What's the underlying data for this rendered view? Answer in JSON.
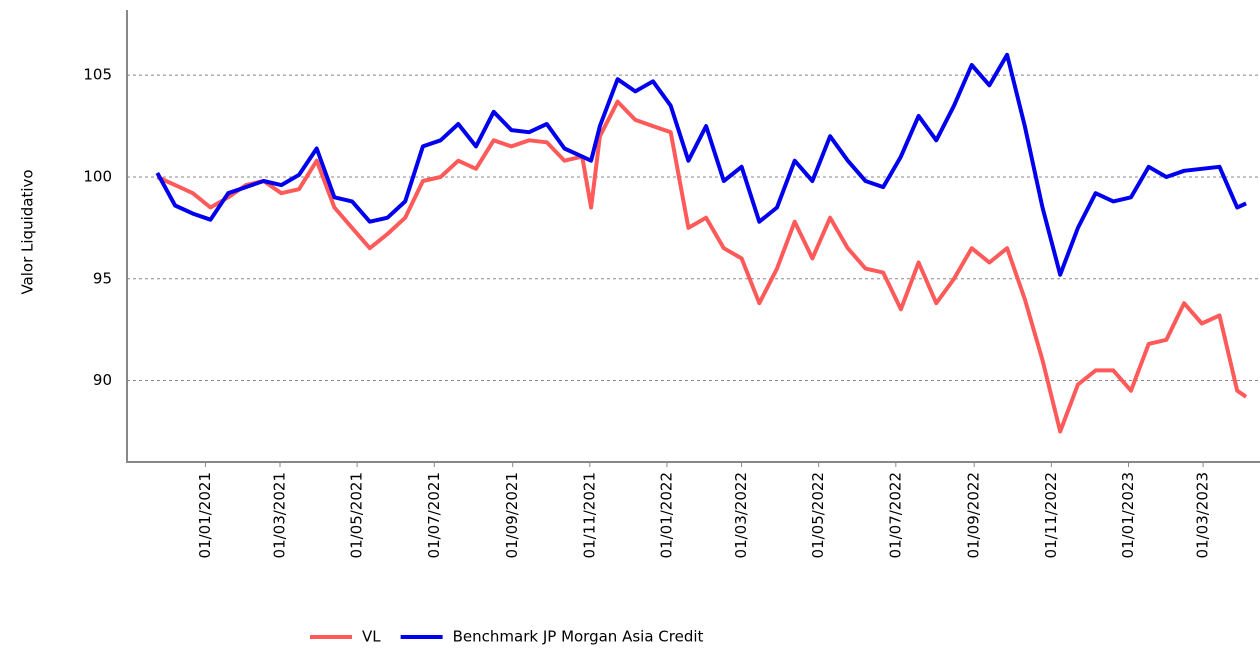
{
  "chart_data": {
    "type": "line",
    "y_label": "Valor Liquidativo",
    "x": [
      "2020-11-24",
      "2020-12-08",
      "2020-12-22",
      "2021-01-05",
      "2021-01-19",
      "2021-02-02",
      "2021-02-16",
      "2021-03-02",
      "2021-03-16",
      "2021-03-30",
      "2021-04-13",
      "2021-04-27",
      "2021-05-11",
      "2021-05-25",
      "2021-06-08",
      "2021-06-22",
      "2021-07-06",
      "2021-07-20",
      "2021-08-03",
      "2021-08-17",
      "2021-08-31",
      "2021-09-14",
      "2021-09-28",
      "2021-10-12",
      "2021-10-26",
      "2021-11-02",
      "2021-11-09",
      "2021-11-23",
      "2021-12-07",
      "2021-12-21",
      "2022-01-04",
      "2022-01-18",
      "2022-02-01",
      "2022-02-15",
      "2022-03-01",
      "2022-03-15",
      "2022-03-29",
      "2022-04-12",
      "2022-04-26",
      "2022-05-10",
      "2022-05-24",
      "2022-06-07",
      "2022-06-21",
      "2022-07-05",
      "2022-07-19",
      "2022-08-02",
      "2022-08-16",
      "2022-08-30",
      "2022-09-13",
      "2022-09-27",
      "2022-10-11",
      "2022-10-25",
      "2022-11-08",
      "2022-11-22",
      "2022-12-06",
      "2022-12-20",
      "2023-01-03",
      "2023-01-17",
      "2023-01-31",
      "2023-02-14",
      "2023-02-28",
      "2023-03-14",
      "2023-03-28",
      "2023-04-04"
    ],
    "series": [
      {
        "name": "VL",
        "color": "#ff5a5a",
        "values": [
          100.0,
          99.6,
          99.2,
          98.5,
          99.0,
          99.6,
          99.8,
          99.2,
          99.4,
          100.8,
          98.5,
          97.5,
          96.5,
          97.2,
          98.0,
          99.8,
          100.0,
          100.8,
          100.4,
          101.8,
          101.5,
          101.8,
          101.7,
          100.8,
          101.0,
          98.5,
          102.0,
          103.7,
          102.8,
          102.5,
          102.2,
          97.5,
          98.0,
          96.5,
          96.0,
          93.8,
          95.5,
          97.8,
          96.0,
          98.0,
          96.5,
          95.5,
          95.3,
          93.5,
          95.8,
          93.8,
          95.0,
          96.5,
          95.8,
          96.5,
          94.0,
          91.0,
          87.5,
          89.8,
          90.5,
          90.5,
          89.5,
          91.8,
          92.0,
          93.8,
          92.8,
          93.2,
          89.5,
          89.2
        ]
      },
      {
        "name": "Benchmark JP Morgan Asia Credit",
        "color": "#0000ee",
        "values": [
          100.2,
          98.6,
          98.2,
          97.9,
          99.2,
          99.5,
          99.8,
          99.6,
          100.1,
          101.4,
          99.0,
          98.8,
          97.8,
          98.0,
          98.8,
          101.5,
          101.8,
          102.6,
          101.5,
          103.2,
          102.3,
          102.2,
          102.6,
          101.4,
          101.0,
          100.8,
          102.5,
          104.8,
          104.2,
          104.7,
          103.5,
          100.8,
          102.5,
          99.8,
          100.5,
          97.8,
          98.5,
          100.8,
          99.8,
          102.0,
          100.8,
          99.8,
          99.5,
          101.0,
          103.0,
          101.8,
          103.5,
          105.5,
          104.5,
          106.0,
          102.5,
          98.5,
          95.2,
          97.5,
          99.2,
          98.8,
          99.0,
          100.5,
          100.0,
          100.3,
          100.4,
          100.5,
          98.5,
          98.7
        ]
      }
    ],
    "xlim": [
      "2020-10-31",
      "2023-04-15"
    ],
    "xticks": [
      {
        "value": "2021-01-01",
        "label": "01/01/2021"
      },
      {
        "value": "2021-03-01",
        "label": "01/03/2021"
      },
      {
        "value": "2021-05-01",
        "label": "01/05/2021"
      },
      {
        "value": "2021-07-01",
        "label": "01/07/2021"
      },
      {
        "value": "2021-09-01",
        "label": "01/09/2021"
      },
      {
        "value": "2021-11-01",
        "label": "01/11/2021"
      },
      {
        "value": "2022-01-01",
        "label": "01/01/2022"
      },
      {
        "value": "2022-03-01",
        "label": "01/03/2022"
      },
      {
        "value": "2022-05-01",
        "label": "01/05/2022"
      },
      {
        "value": "2022-07-01",
        "label": "01/07/2022"
      },
      {
        "value": "2022-09-01",
        "label": "01/09/2022"
      },
      {
        "value": "2022-11-01",
        "label": "01/11/2022"
      },
      {
        "value": "2023-01-01",
        "label": "01/01/2023"
      },
      {
        "value": "2023-03-01",
        "label": "01/03/2023"
      }
    ],
    "ylim": [
      86,
      108.2
    ],
    "yticks": [
      90,
      95,
      100,
      105
    ],
    "grid": true,
    "legend": "bottom"
  }
}
